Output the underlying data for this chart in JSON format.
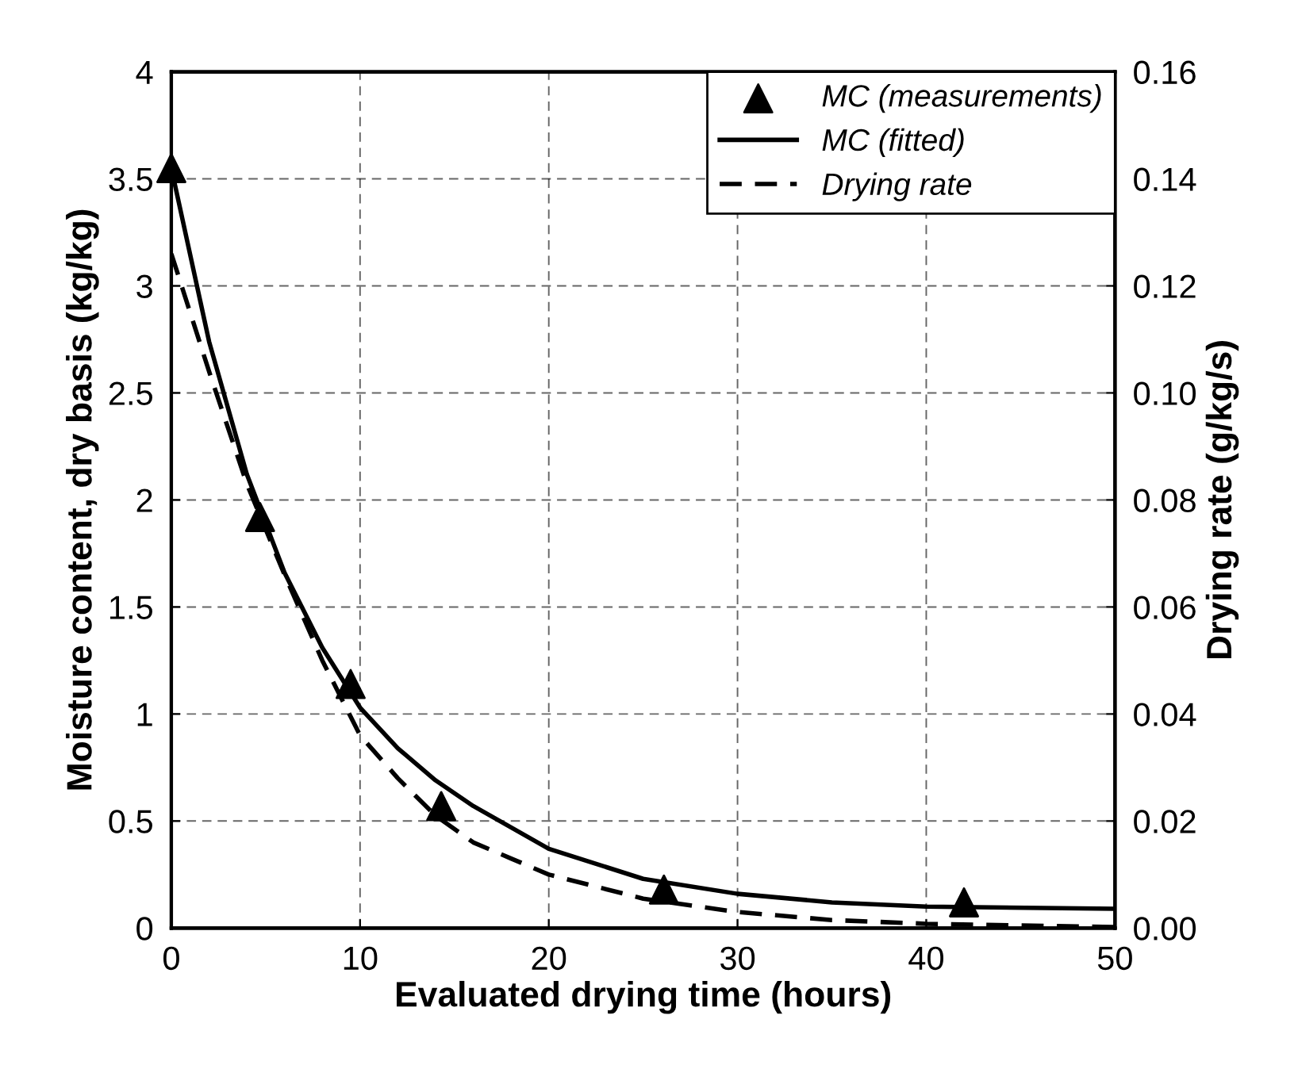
{
  "chart_data": {
    "type": "line",
    "xlabel": "Evaluated drying time (hours)",
    "ylabel": "Moisture content, dry basis (kg/kg)",
    "y2label": "Drying rate (g/kg/s)",
    "xlim": [
      0,
      50
    ],
    "xticks": [
      0,
      10,
      20,
      30,
      40,
      50
    ],
    "ylim": [
      0,
      4
    ],
    "yticks": [
      0,
      0.5,
      1,
      1.5,
      2,
      2.5,
      3,
      3.5,
      4
    ],
    "y2lim": [
      0,
      0.16
    ],
    "y2ticks": [
      {
        "value": 0,
        "label": "0.00"
      },
      {
        "value": 0.02,
        "label": "0.02"
      },
      {
        "value": 0.04,
        "label": "0.04"
      },
      {
        "value": 0.06,
        "label": "0.06"
      },
      {
        "value": 0.08,
        "label": "0.08"
      },
      {
        "value": 0.1,
        "label": "0.10"
      },
      {
        "value": 0.12,
        "label": "0.12"
      },
      {
        "value": 0.14,
        "label": "0.14"
      },
      {
        "value": 0.16,
        "label": "0.16"
      }
    ],
    "grid": true,
    "legend": "top right",
    "series": [
      {
        "name": "MC (measurements)",
        "type": "scatter",
        "marker": "triangle",
        "color": "#000000",
        "x": [
          0,
          4.7,
          9.5,
          14.3,
          26.1,
          42.0
        ],
        "values": [
          3.55,
          1.92,
          1.14,
          0.57,
          0.18,
          0.12
        ]
      },
      {
        "name": "MC (fitted)",
        "line_style": "solid",
        "color": "#000000",
        "x": [
          0,
          2,
          4,
          6,
          8,
          10,
          12,
          14,
          16,
          18,
          20,
          25,
          30,
          35,
          40,
          50
        ],
        "values": [
          3.55,
          2.74,
          2.12,
          1.66,
          1.31,
          1.03,
          0.84,
          0.69,
          0.57,
          0.47,
          0.37,
          0.23,
          0.16,
          0.12,
          0.1,
          0.09
        ]
      },
      {
        "name": "Drying rate",
        "line_style": "dashed",
        "axis": "y2",
        "color": "#000000",
        "x": [
          0,
          2,
          4,
          6,
          8,
          10,
          12,
          14,
          16,
          18,
          20,
          25,
          30,
          35,
          40,
          50
        ],
        "values": [
          0.126,
          0.104,
          0.083,
          0.066,
          0.05,
          0.036,
          0.028,
          0.021,
          0.016,
          0.013,
          0.01,
          0.0055,
          0.003,
          0.0015,
          0.0008,
          0.0002
        ]
      }
    ]
  }
}
